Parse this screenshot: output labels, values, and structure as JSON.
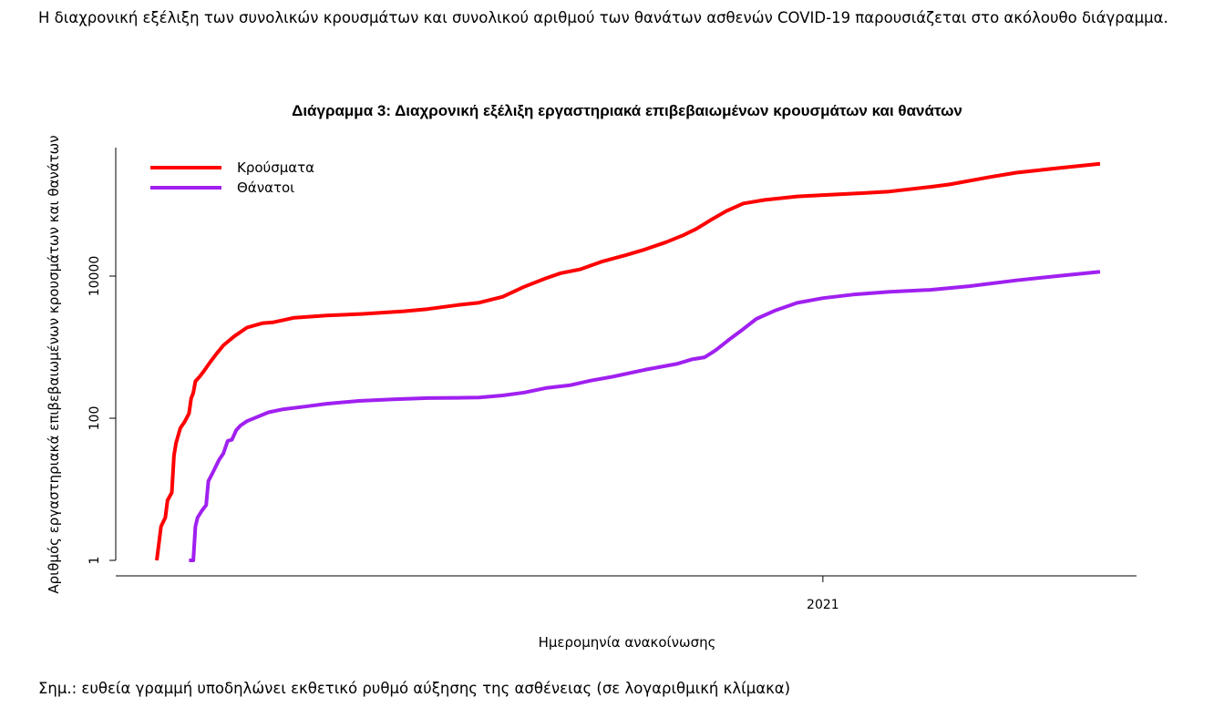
{
  "intro_text": "Η διαχρονική εξέλιξη των συνολικών κρουσμάτων και συνολικού αριθμού των θανάτων ασθενών COVID-19 παρουσιάζεται στο ακόλουθο διάγραμμα.",
  "note_text": "Σημ.: ευθεία γραμμή υποδηλώνει εκθετικό ρυθμό αύξησης της ασθένειας (σε λογαριθμική κλίμακα)",
  "chart_data": {
    "type": "line",
    "title": "Διάγραμμα 3: Διαχρονική εξέλιξη εργαστηριακά επιβεβαιωμένων κρουσμάτων και θανάτων",
    "xlabel": "Ημερομηνία ανακοίνωσης",
    "ylabel": "Αριθμός εργαστηριακά επιβεβαιωμένων κρουσμάτων και θανάτων",
    "x_axis": {
      "type": "date",
      "range": [
        "2020-02-26",
        "2021-05-10"
      ],
      "ticks": [
        {
          "date": "2021-01-01",
          "label": "2021"
        }
      ]
    },
    "y_axis": {
      "scale": "log10",
      "range": [
        0.75,
        1000000
      ],
      "ticks": [
        {
          "value": 1,
          "label": "1"
        },
        {
          "value": 100,
          "label": "100"
        },
        {
          "value": 10000,
          "label": "10000"
        }
      ]
    },
    "grid": false,
    "legend_position": "top-left",
    "series": [
      {
        "name": "Κρούσματα",
        "color": "#ff0000",
        "points": [
          [
            "2020-02-26",
            1
          ],
          [
            "2020-02-28",
            3
          ],
          [
            "2020-03-01",
            4
          ],
          [
            "2020-03-02",
            7
          ],
          [
            "2020-03-04",
            9
          ],
          [
            "2020-03-05",
            30
          ],
          [
            "2020-03-06",
            45
          ],
          [
            "2020-03-08",
            73
          ],
          [
            "2020-03-10",
            89
          ],
          [
            "2020-03-12",
            117
          ],
          [
            "2020-03-13",
            190
          ],
          [
            "2020-03-14",
            228
          ],
          [
            "2020-03-15",
            331
          ],
          [
            "2020-03-17",
            387
          ],
          [
            "2020-03-19",
            464
          ],
          [
            "2020-03-22",
            624
          ],
          [
            "2020-03-25",
            821
          ],
          [
            "2020-03-28",
            1061
          ],
          [
            "2020-04-02",
            1415
          ],
          [
            "2020-04-08",
            1884
          ],
          [
            "2020-04-15",
            2170
          ],
          [
            "2020-04-20",
            2235
          ],
          [
            "2020-04-30",
            2591
          ],
          [
            "2020-05-15",
            2788
          ],
          [
            "2020-06-01",
            2937
          ],
          [
            "2020-06-20",
            3203
          ],
          [
            "2020-07-01",
            3432
          ],
          [
            "2020-07-15",
            3910
          ],
          [
            "2020-07-25",
            4227
          ],
          [
            "2020-08-05",
            5123
          ],
          [
            "2020-08-15",
            7075
          ],
          [
            "2020-08-25",
            9280
          ],
          [
            "2020-09-01",
            10998
          ],
          [
            "2020-09-10",
            12452
          ],
          [
            "2020-09-20",
            15928
          ],
          [
            "2020-10-01",
            19613
          ],
          [
            "2020-10-10",
            23623
          ],
          [
            "2020-10-20",
            29992
          ],
          [
            "2020-10-28",
            37513
          ],
          [
            "2020-11-03",
            46000
          ],
          [
            "2020-11-10",
            62000
          ],
          [
            "2020-11-17",
            82000
          ],
          [
            "2020-11-25",
            105000
          ],
          [
            "2020-12-05",
            118000
          ],
          [
            "2020-12-20",
            132000
          ],
          [
            "2021-01-01",
            138000
          ],
          [
            "2021-01-20",
            147000
          ],
          [
            "2021-02-01",
            155000
          ],
          [
            "2021-02-20",
            180000
          ],
          [
            "2021-03-01",
            195000
          ],
          [
            "2021-03-20",
            248000
          ],
          [
            "2021-04-01",
            285000
          ],
          [
            "2021-04-20",
            330000
          ],
          [
            "2021-05-10",
            380000
          ]
        ]
      },
      {
        "name": "Θάνατοι",
        "color": "#a020f0",
        "points": [
          [
            "2020-03-12",
            1
          ],
          [
            "2020-03-14",
            1
          ],
          [
            "2020-03-15",
            3
          ],
          [
            "2020-03-16",
            4
          ],
          [
            "2020-03-18",
            5
          ],
          [
            "2020-03-20",
            6
          ],
          [
            "2020-03-21",
            13
          ],
          [
            "2020-03-23",
            17
          ],
          [
            "2020-03-26",
            26
          ],
          [
            "2020-03-28",
            32
          ],
          [
            "2020-03-30",
            48
          ],
          [
            "2020-04-01",
            50
          ],
          [
            "2020-04-03",
            68
          ],
          [
            "2020-04-05",
            79
          ],
          [
            "2020-04-08",
            91
          ],
          [
            "2020-04-12",
            102
          ],
          [
            "2020-04-18",
            121
          ],
          [
            "2020-04-25",
            134
          ],
          [
            "2020-05-05",
            146
          ],
          [
            "2020-05-15",
            160
          ],
          [
            "2020-05-30",
            175
          ],
          [
            "2020-06-15",
            185
          ],
          [
            "2020-07-01",
            192
          ],
          [
            "2020-07-15",
            194
          ],
          [
            "2020-07-25",
            196
          ],
          [
            "2020-08-05",
            209
          ],
          [
            "2020-08-15",
            230
          ],
          [
            "2020-08-25",
            266
          ],
          [
            "2020-09-05",
            290
          ],
          [
            "2020-09-15",
            338
          ],
          [
            "2020-09-25",
            383
          ],
          [
            "2020-10-10",
            480
          ],
          [
            "2020-10-25",
            581
          ],
          [
            "2020-11-01",
            673
          ],
          [
            "2020-11-07",
            720
          ],
          [
            "2020-11-12",
            900
          ],
          [
            "2020-11-18",
            1250
          ],
          [
            "2020-11-25",
            1800
          ],
          [
            "2020-12-01",
            2500
          ],
          [
            "2020-12-10",
            3300
          ],
          [
            "2020-12-20",
            4200
          ],
          [
            "2021-01-01",
            4900
          ],
          [
            "2021-01-15",
            5500
          ],
          [
            "2021-02-01",
            6000
          ],
          [
            "2021-02-20",
            6400
          ],
          [
            "2021-03-10",
            7200
          ],
          [
            "2021-04-01",
            8700
          ],
          [
            "2021-04-20",
            10000
          ],
          [
            "2021-05-10",
            11500
          ]
        ]
      }
    ]
  }
}
